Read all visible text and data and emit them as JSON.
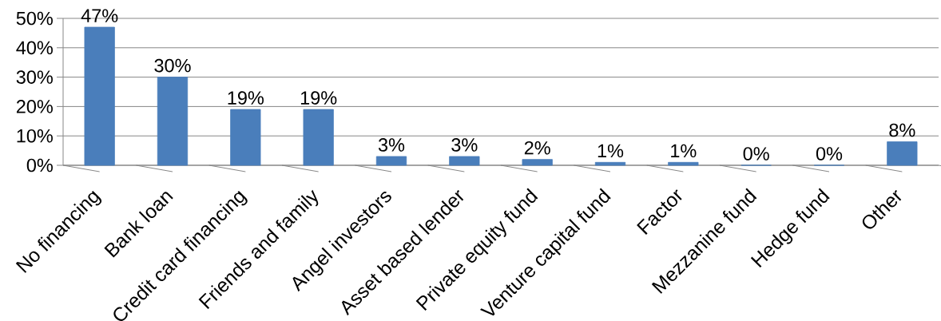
{
  "chart_data": {
    "type": "bar",
    "categories": [
      "No financing",
      "Bank loan",
      "Credit card financing",
      "Friends and family",
      "Angel investors",
      "Asset based lender",
      "Private equity fund",
      "Venture capital fund",
      "Factor",
      "Mezzanine fund",
      "Hedge fund",
      "Other"
    ],
    "values": [
      47,
      30,
      19,
      19,
      3,
      3,
      2,
      1,
      1,
      0,
      0,
      8
    ],
    "value_labels": [
      "47%",
      "30%",
      "19%",
      "19%",
      "3%",
      "3%",
      "2%",
      "1%",
      "1%",
      "0%",
      "0%",
      "8%"
    ],
    "color": "#4a7ebb",
    "ylim": [
      0,
      50
    ],
    "yticks": [
      {
        "value": 0,
        "label": "0%"
      },
      {
        "value": 10,
        "label": "10%"
      },
      {
        "value": 20,
        "label": "20%"
      },
      {
        "value": 30,
        "label": "30%"
      },
      {
        "value": 40,
        "label": "40%"
      },
      {
        "value": 50,
        "label": "50%"
      }
    ],
    "grid": "y"
  }
}
